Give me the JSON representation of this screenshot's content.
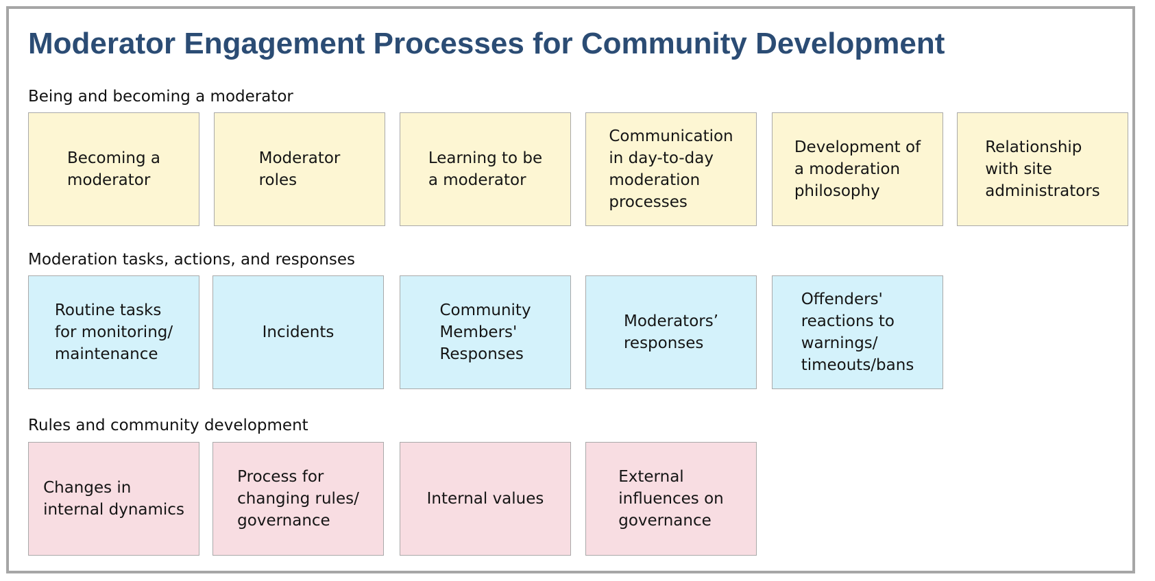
{
  "title": "Moderator Engagement Processes for Community Development",
  "sections": [
    {
      "label": "Being and becoming a moderator",
      "color": "#fdf6d3",
      "cards": [
        "Becoming a\nmoderator",
        "Moderator\nroles",
        "Learning to be\na moderator",
        "Communication\nin day-to-day\nmoderation\nprocesses",
        "Development of\na moderation\nphilosophy",
        "Relationship\nwith site\nadministrators"
      ]
    },
    {
      "label": "Moderation tasks, actions, and responses",
      "color": "#d4f2fb",
      "cards": [
        "Routine tasks\nfor monitoring/\nmaintenance",
        "Incidents",
        "Community\nMembers'\nResponses",
        "Moderators’\nresponses",
        "Offenders'\nreactions to\nwarnings/\ntimeouts/bans"
      ]
    },
    {
      "label": "Rules and community development",
      "color": "#f8dde2",
      "cards": [
        "Changes in\ninternal dynamics",
        "Process for\nchanging rules/\ngovernance",
        "Internal values",
        "External\ninfluences on\ngovernance"
      ]
    }
  ]
}
